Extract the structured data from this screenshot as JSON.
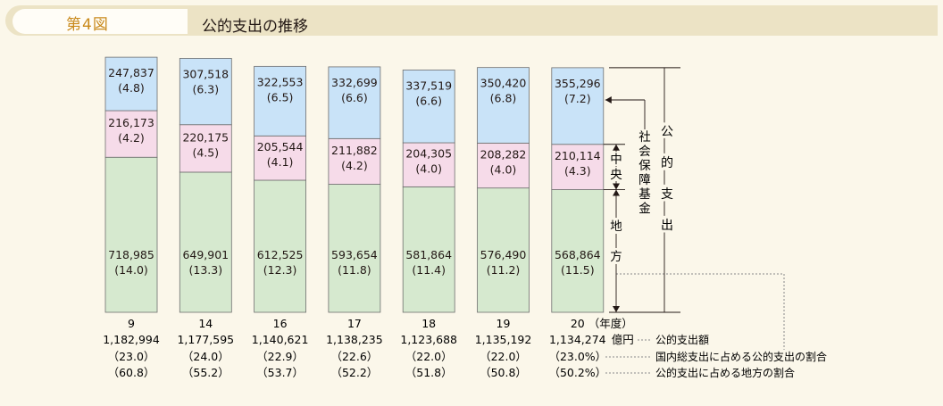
{
  "figure": {
    "label": "第4図",
    "title": "公的支出の推移"
  },
  "chart_data": {
    "type": "bar",
    "stacked": true,
    "categories": [
      "9",
      "14",
      "16",
      "17",
      "18",
      "19",
      "20"
    ],
    "x_unit": "（年度）",
    "series": [
      {
        "name": "地方",
        "values": [
          718985,
          649901,
          612525,
          593654,
          581864,
          576490,
          568864
        ],
        "labels": [
          "718,985",
          "649,901",
          "612,525",
          "593,654",
          "581,864",
          "576,490",
          "568,864"
        ],
        "pct": [
          "(14.0)",
          "(13.3)",
          "(12.3)",
          "(11.8)",
          "(11.4)",
          "(11.2)",
          "(11.5)"
        ],
        "color": "#d6e9cf"
      },
      {
        "name": "中央",
        "values": [
          216173,
          220175,
          205544,
          211882,
          204305,
          208282,
          210114
        ],
        "labels": [
          "216,173",
          "220,175",
          "205,544",
          "211,882",
          "204,305",
          "208,282",
          "210,114"
        ],
        "pct": [
          "(4.2)",
          "(4.5)",
          "(4.1)",
          "(4.2)",
          "(4.0)",
          "(4.0)",
          "(4.3)"
        ],
        "color": "#f6dbe9"
      },
      {
        "name": "社会保障基金",
        "values": [
          247837,
          307518,
          322553,
          332699,
          337519,
          350420,
          355296
        ],
        "labels": [
          "247,837",
          "307,518",
          "322,553",
          "332,699",
          "337,519",
          "350,420",
          "355,296"
        ],
        "pct": [
          "(4.8)",
          "(6.3)",
          "(6.5)",
          "(6.6)",
          "(6.6)",
          "(6.8)",
          "(7.2)"
        ],
        "color": "#c9e3f8"
      }
    ],
    "totals": [
      "1,182,994",
      "1,177,595",
      "1,140,621",
      "1,138,235",
      "1,123,688",
      "1,135,192",
      "1,134,274"
    ],
    "total_unit": "億円",
    "gdp_share": [
      "（23.0）",
      "（24.0）",
      "（22.9）",
      "（22.6）",
      "（22.0）",
      "（22.0）",
      "（23.0%）"
    ],
    "local_share": [
      "（60.8）",
      "（55.2）",
      "（53.7）",
      "（52.2）",
      "（51.8）",
      "（50.8）",
      "（50.2%）"
    ],
    "ylim": [
      0,
      1200000
    ],
    "legend_notes": [
      "公的支出額",
      "国内総支出に占める公的支出の割合",
      "公的支出に占める地方の割合"
    ],
    "bracket_labels": {
      "total": "公的支出",
      "social": "社会保障基金",
      "central": "中央",
      "local": "地方"
    }
  }
}
